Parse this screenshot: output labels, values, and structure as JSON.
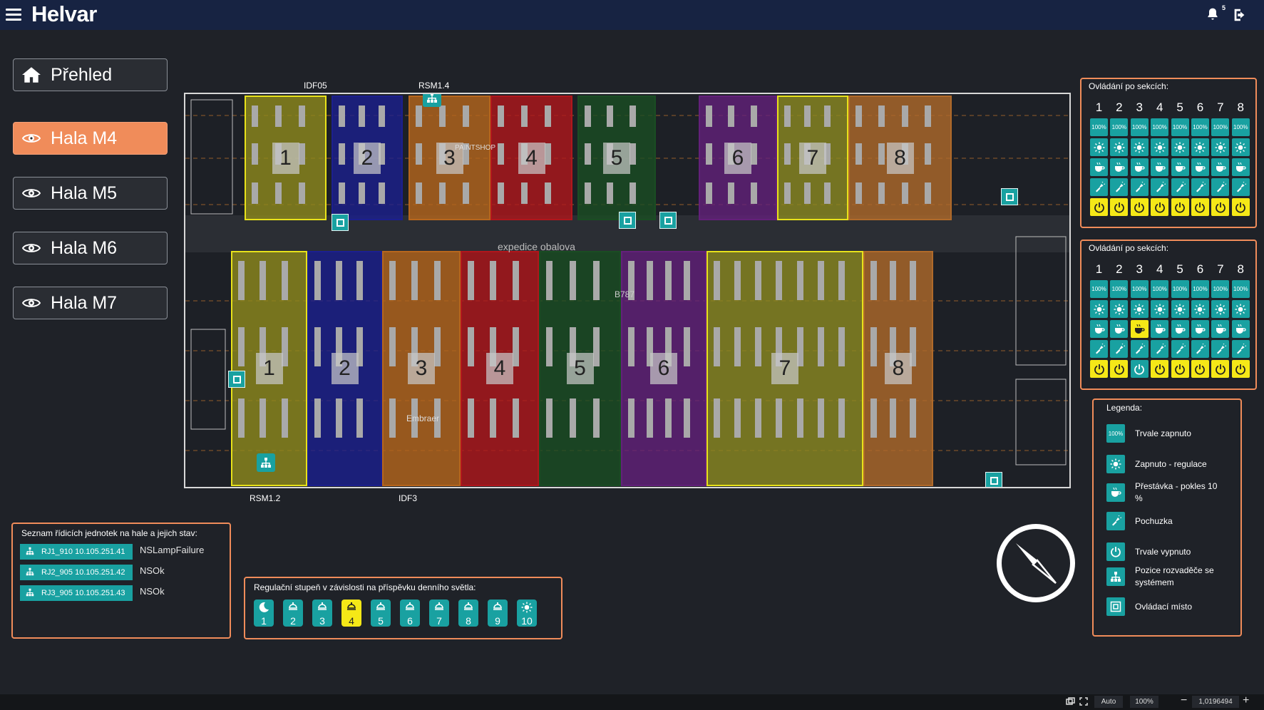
{
  "app": {
    "brand": "Helvar",
    "notifications": "5"
  },
  "nav": {
    "overview": "Přehled",
    "halls": [
      {
        "label": "Hala M4",
        "active": true
      },
      {
        "label": "Hala M5",
        "active": false
      },
      {
        "label": "Hala M6",
        "active": false
      },
      {
        "label": "Hala M7",
        "active": false
      }
    ]
  },
  "plan": {
    "labels": {
      "idf05": "IDF05",
      "rsm14": "RSM1.4",
      "rsm12": "RSM1.2",
      "idf3": "IDF3",
      "expedice": "expedice obalova",
      "paintshop": "PAINTSHOP",
      "b787": "B787",
      "embraer": "Embraer"
    },
    "top_sections": [
      "1",
      "2",
      "3",
      "4",
      "5",
      "6",
      "7",
      "8"
    ],
    "bottom_sections": [
      "1",
      "2",
      "3",
      "4",
      "5",
      "6",
      "7",
      "8"
    ],
    "zone_colors": [
      "#8f8a1d",
      "#1c1f8f",
      "#b7661d",
      "#b0161c",
      "#1a4d23",
      "#63207a",
      "#8c8a22",
      "#b06a2a"
    ]
  },
  "section_panel_1": {
    "title": "Ovládání po sekcích:",
    "numbers": [
      "1",
      "2",
      "3",
      "4",
      "5",
      "6",
      "7",
      "8"
    ],
    "percent": "100%",
    "highlight": {
      "break_row": [],
      "off_row": [
        0,
        1,
        2,
        3,
        4,
        5,
        6,
        7
      ]
    }
  },
  "section_panel_2": {
    "title": "Ovládání po sekcích:",
    "numbers": [
      "1",
      "2",
      "3",
      "4",
      "5",
      "6",
      "7",
      "8"
    ],
    "percent": "100%",
    "highlight": {
      "break_row": [
        2
      ],
      "off_row": [
        0,
        1,
        3,
        4,
        5,
        6,
        7
      ]
    }
  },
  "legend": {
    "title": "Legenda:",
    "items": [
      {
        "icon": "percent-icon",
        "label": "Trvale zapnuto"
      },
      {
        "icon": "sun-icon",
        "label": "Zapnuto - regulace"
      },
      {
        "icon": "coffee-cup-icon",
        "label": "Přestávka - pokles 10 %"
      },
      {
        "icon": "flashlight-icon",
        "label": "Pochuzka"
      },
      {
        "icon": "power-icon",
        "label": "Trvale vypnuto"
      },
      {
        "icon": "distribution-icon",
        "label": "Pozice rozvaděče se systémem"
      },
      {
        "icon": "control-point-icon",
        "label": "Ovládací místo"
      }
    ]
  },
  "units": {
    "title": "Seznam řídicích jednotek na hale a jejich stav:",
    "rows": [
      {
        "name": "RJ1_910 10.105.251.41",
        "status": "NSLampFailure"
      },
      {
        "name": "RJ2_905 10.105.251.42",
        "status": "NSOk"
      },
      {
        "name": "RJ3_905 10.105.251.43",
        "status": "NSOk"
      }
    ]
  },
  "daylight": {
    "title": "Regulační stupeň v závislosti na příspěvku denního světla:",
    "steps": [
      "1",
      "2",
      "3",
      "4",
      "5",
      "6",
      "7",
      "8",
      "9",
      "10"
    ],
    "active_step": "4"
  },
  "statusbar": {
    "mode": "Auto",
    "zoom": "100%",
    "scale": "1,0196494"
  },
  "colors": {
    "teal": "#19a1a1",
    "accent": "#f08c5a",
    "highlight": "#f5e817",
    "topbar": "#172342"
  }
}
